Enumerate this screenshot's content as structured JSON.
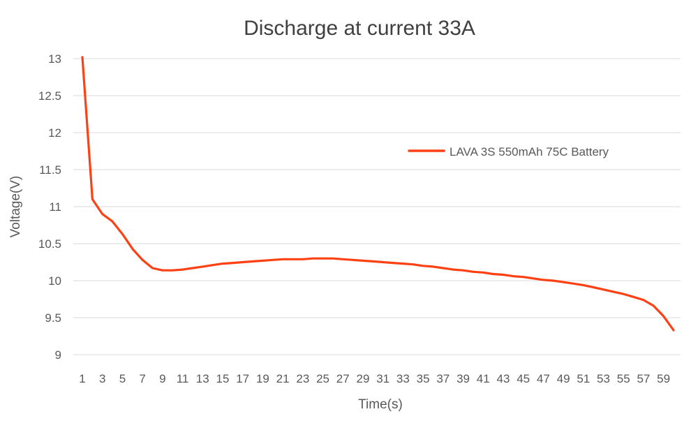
{
  "chart_data": {
    "type": "line",
    "title": "Discharge at current 33A",
    "xlabel": "Time(s)",
    "ylabel": "Voltage(V)",
    "ylim": [
      9,
      13
    ],
    "yticks": [
      "9",
      "9.5",
      "10",
      "10.5",
      "11",
      "11.5",
      "12",
      "12.5",
      "13"
    ],
    "x": [
      1,
      2,
      3,
      4,
      5,
      6,
      7,
      8,
      9,
      10,
      11,
      12,
      13,
      14,
      15,
      16,
      17,
      18,
      19,
      20,
      21,
      22,
      23,
      24,
      25,
      26,
      27,
      28,
      29,
      30,
      31,
      32,
      33,
      34,
      35,
      36,
      37,
      38,
      39,
      40,
      41,
      42,
      43,
      44,
      45,
      46,
      47,
      48,
      49,
      50,
      51,
      52,
      53,
      54,
      55,
      56,
      57,
      58,
      59,
      60
    ],
    "xtick_labels": [
      "1",
      "3",
      "5",
      "7",
      "9",
      "11",
      "13",
      "15",
      "17",
      "19",
      "21",
      "23",
      "25",
      "27",
      "29",
      "31",
      "33",
      "35",
      "37",
      "39",
      "41",
      "43",
      "45",
      "47",
      "49",
      "51",
      "53",
      "55",
      "57",
      "59"
    ],
    "grid": true,
    "legend_position": "right",
    "colors": {
      "series": "#ff4013",
      "grid": "#d9d9d9",
      "text": "#595959"
    },
    "series": [
      {
        "name": "LAVA 3S 550mAh 75C Battery",
        "values": [
          13.02,
          11.1,
          10.9,
          10.8,
          10.63,
          10.43,
          10.28,
          10.17,
          10.14,
          10.14,
          10.15,
          10.17,
          10.19,
          10.21,
          10.23,
          10.24,
          10.25,
          10.26,
          10.27,
          10.28,
          10.29,
          10.29,
          10.29,
          10.3,
          10.3,
          10.3,
          10.29,
          10.28,
          10.27,
          10.26,
          10.25,
          10.24,
          10.23,
          10.22,
          10.2,
          10.19,
          10.17,
          10.15,
          10.14,
          10.12,
          10.11,
          10.09,
          10.08,
          10.06,
          10.05,
          10.03,
          10.01,
          10.0,
          9.98,
          9.96,
          9.94,
          9.91,
          9.88,
          9.85,
          9.82,
          9.78,
          9.74,
          9.66,
          9.52,
          9.33
        ]
      }
    ]
  }
}
